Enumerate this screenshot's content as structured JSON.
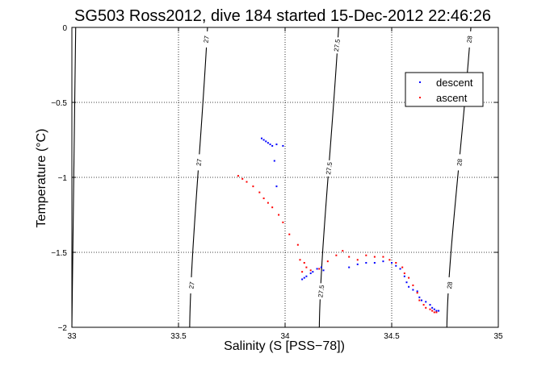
{
  "chart_data": {
    "type": "scatter",
    "title": "SG503 Ross2012, dive 184 started 15-Dec-2012 22:46:26",
    "xlabel": "Salinity (S [PSS−78])",
    "ylabel": "Temperature (°C)",
    "xlim": [
      33,
      35
    ],
    "ylim": [
      -2,
      0
    ],
    "xticks": [
      33,
      33.5,
      34,
      34.5,
      35
    ],
    "xtick_labels": [
      "33",
      "33.5",
      "34",
      "34.5",
      "35"
    ],
    "yticks": [
      0,
      -0.5,
      -1,
      -1.5,
      -2
    ],
    "ytick_labels": [
      "0",
      "−0.5",
      "−1",
      "−1.5",
      "−2"
    ],
    "grid": true,
    "legend_position": "top-right",
    "series": [
      {
        "name": "descent",
        "color": "#0000ff",
        "points": [
          [
            33.89,
            -0.74
          ],
          [
            33.9,
            -0.75
          ],
          [
            33.91,
            -0.76
          ],
          [
            33.92,
            -0.77
          ],
          [
            33.93,
            -0.78
          ],
          [
            33.94,
            -0.79
          ],
          [
            33.96,
            -0.78
          ],
          [
            33.99,
            -0.79
          ],
          [
            33.95,
            -0.89
          ],
          [
            33.96,
            -1.06
          ],
          [
            34.08,
            -1.68
          ],
          [
            34.09,
            -1.67
          ],
          [
            34.1,
            -1.66
          ],
          [
            34.12,
            -1.64
          ],
          [
            34.13,
            -1.63
          ],
          [
            34.15,
            -1.61
          ],
          [
            34.17,
            -1.6
          ],
          [
            34.18,
            -1.62
          ],
          [
            34.3,
            -1.6
          ],
          [
            34.34,
            -1.58
          ],
          [
            34.38,
            -1.57
          ],
          [
            34.42,
            -1.57
          ],
          [
            34.46,
            -1.56
          ],
          [
            34.5,
            -1.57
          ],
          [
            34.52,
            -1.59
          ],
          [
            34.54,
            -1.61
          ],
          [
            34.56,
            -1.66
          ],
          [
            34.57,
            -1.7
          ],
          [
            34.58,
            -1.73
          ],
          [
            34.6,
            -1.75
          ],
          [
            34.62,
            -1.76
          ],
          [
            34.63,
            -1.8
          ],
          [
            34.64,
            -1.82
          ],
          [
            34.66,
            -1.83
          ],
          [
            34.68,
            -1.85
          ],
          [
            34.69,
            -1.87
          ],
          [
            34.7,
            -1.88
          ],
          [
            34.71,
            -1.89
          ],
          [
            34.72,
            -1.89
          ]
        ]
      },
      {
        "name": "ascent",
        "color": "#ff0000",
        "points": [
          [
            33.78,
            -0.99
          ],
          [
            33.8,
            -1.01
          ],
          [
            33.82,
            -1.03
          ],
          [
            33.85,
            -1.06
          ],
          [
            33.88,
            -1.1
          ],
          [
            33.9,
            -1.14
          ],
          [
            33.92,
            -1.17
          ],
          [
            33.94,
            -1.2
          ],
          [
            33.97,
            -1.25
          ],
          [
            33.99,
            -1.3
          ],
          [
            34.02,
            -1.38
          ],
          [
            34.06,
            -1.45
          ],
          [
            34.07,
            -1.55
          ],
          [
            34.09,
            -1.57
          ],
          [
            34.1,
            -1.6
          ],
          [
            34.08,
            -1.63
          ],
          [
            34.12,
            -1.62
          ],
          [
            34.16,
            -1.61
          ],
          [
            34.2,
            -1.56
          ],
          [
            34.24,
            -1.52
          ],
          [
            34.27,
            -1.49
          ],
          [
            34.3,
            -1.53
          ],
          [
            34.34,
            -1.55
          ],
          [
            34.38,
            -1.52
          ],
          [
            34.42,
            -1.53
          ],
          [
            34.46,
            -1.53
          ],
          [
            34.49,
            -1.55
          ],
          [
            34.52,
            -1.57
          ],
          [
            34.55,
            -1.6
          ],
          [
            34.56,
            -1.64
          ],
          [
            34.58,
            -1.67
          ],
          [
            34.6,
            -1.72
          ],
          [
            34.62,
            -1.77
          ],
          [
            34.63,
            -1.82
          ],
          [
            34.65,
            -1.85
          ],
          [
            34.66,
            -1.87
          ],
          [
            34.68,
            -1.88
          ],
          [
            34.69,
            -1.89
          ],
          [
            34.7,
            -1.9
          ],
          [
            34.71,
            -1.9
          ]
        ]
      }
    ],
    "contours": [
      {
        "label": "27",
        "top_x": 33.6361,
        "bottom_x": 33.5525,
        "label_positions": [
          0.04,
          0.45,
          0.86
        ]
      },
      {
        "label": "27.5",
        "top_x": 34.2511,
        "bottom_x": 34.1605,
        "label_positions": [
          0.06,
          0.47,
          0.88
        ]
      },
      {
        "label": "28",
        "top_x": 34.8714,
        "bottom_x": 34.7587,
        "label_positions": [
          0.04,
          0.45,
          0.86
        ]
      },
      {
        "label": "",
        "top_x": 33.0179,
        "bottom_x": 33.0,
        "label_positions": []
      }
    ]
  }
}
